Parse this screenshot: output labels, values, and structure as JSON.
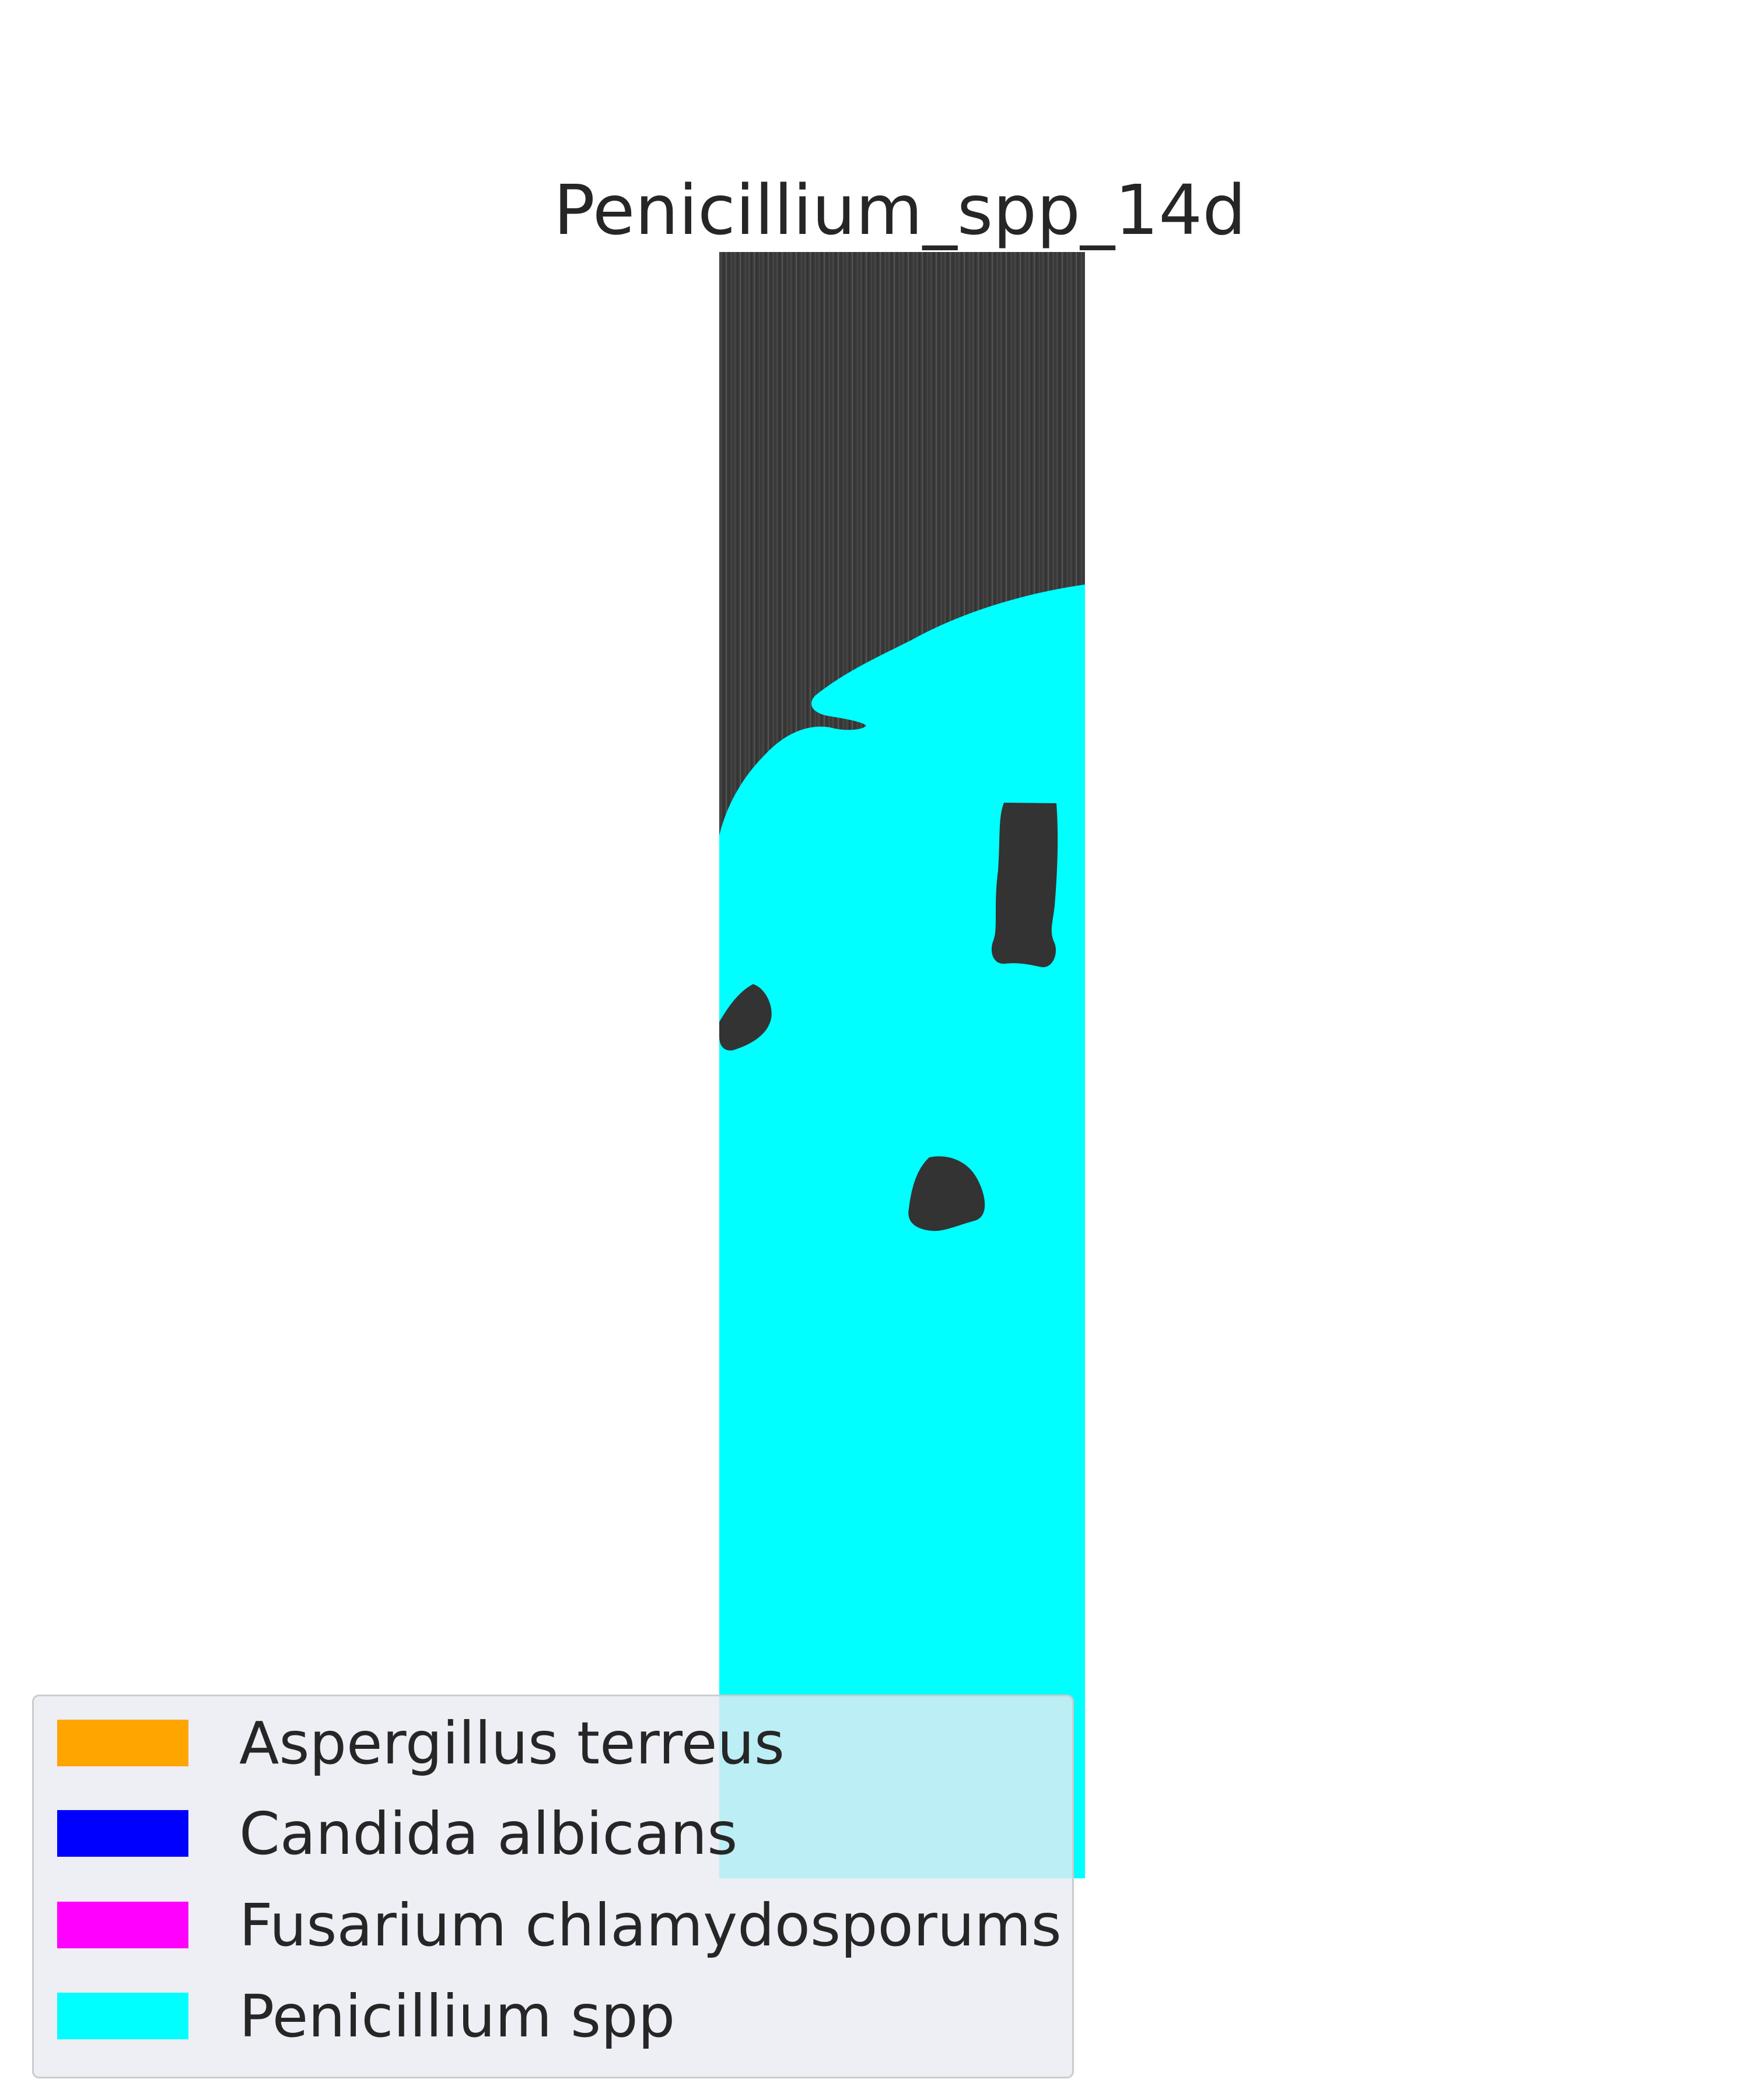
{
  "figure": {
    "title": "Penicillium_spp_14d"
  },
  "legend": {
    "entries": [
      {
        "label": "Aspergillus terreus",
        "color": "#ffa500"
      },
      {
        "label": "Candida albicans",
        "color": "#0000ff"
      },
      {
        "label": "Fusarium chlamydosporums",
        "color": "#ff00ff"
      },
      {
        "label": "Penicillium spp",
        "color": "#00ffff"
      }
    ]
  },
  "colors": {
    "background_tissue": "#3a3a3a",
    "title_text": "#262626"
  }
}
